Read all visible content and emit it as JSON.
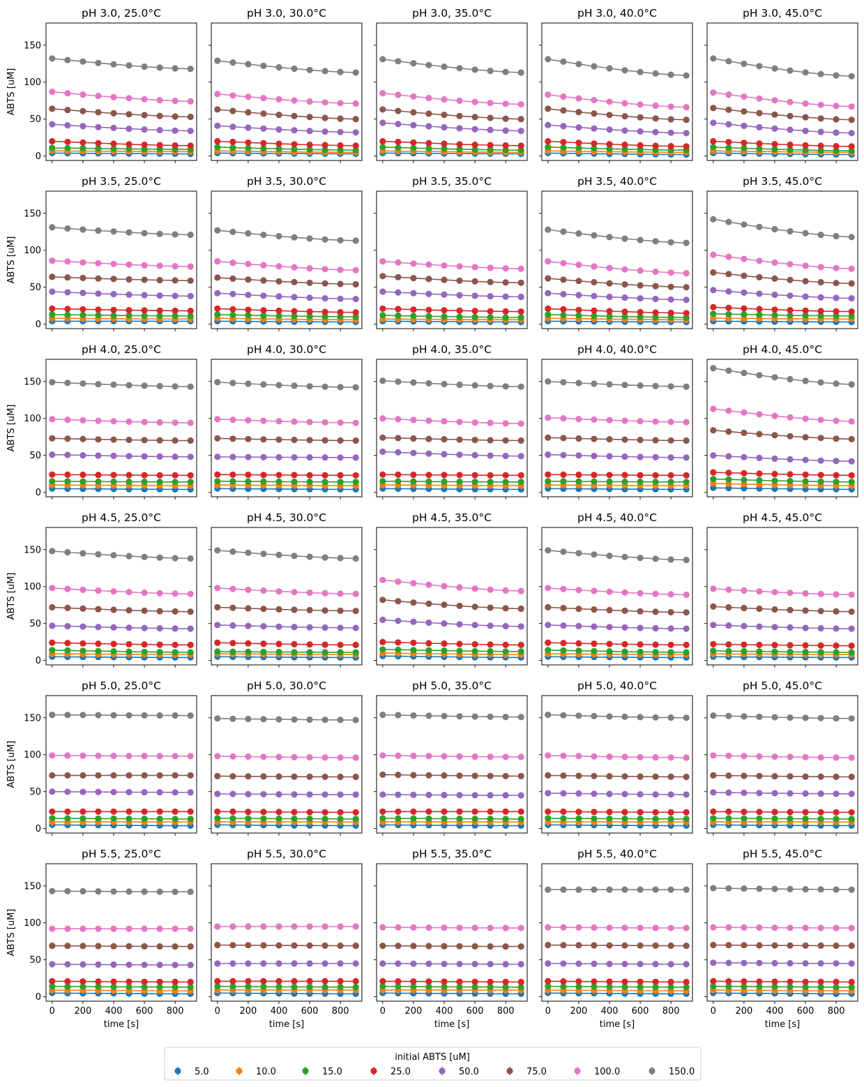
{
  "figure": {
    "legend_title": "initial ABTS [uM]",
    "xlabel": "time [s]",
    "ylabel": "ABTS [uM]"
  },
  "series_styles": [
    {
      "name": "5.0",
      "color": "#1f77b4"
    },
    {
      "name": "10.0",
      "color": "#ff7f0e"
    },
    {
      "name": "15.0",
      "color": "#2ca02c"
    },
    {
      "name": "25.0",
      "color": "#d62728"
    },
    {
      "name": "50.0",
      "color": "#9467bd"
    },
    {
      "name": "75.0",
      "color": "#8c564b"
    },
    {
      "name": "100.0",
      "color": "#e377c2"
    },
    {
      "name": "150.0",
      "color": "#7f7f7f"
    }
  ],
  "chart_data": {
    "type": "scatter",
    "xlim": [
      -40,
      940
    ],
    "ylim": [
      -6,
      180
    ],
    "xticks": [
      0,
      200,
      400,
      600,
      800
    ],
    "yticks": [
      0,
      50,
      100,
      150
    ],
    "x": [
      0,
      100,
      200,
      300,
      400,
      500,
      600,
      700,
      800,
      900
    ],
    "legend_position": "bottom-center",
    "grid": false,
    "panels": [
      {
        "title": "pH 3.0, 25.0°C",
        "start": [
          4,
          7,
          11,
          20,
          43,
          64,
          87,
          132
        ],
        "end": [
          3,
          6,
          9,
          14,
          34,
          53,
          74,
          118
        ]
      },
      {
        "title": "pH 3.0, 30.0°C",
        "start": [
          4,
          7,
          12,
          20,
          41,
          63,
          84,
          129
        ],
        "end": [
          3,
          5,
          8,
          14,
          32,
          50,
          71,
          113
        ]
      },
      {
        "title": "pH 3.0, 35.0°C",
        "start": [
          4,
          7,
          12,
          20,
          45,
          63,
          85,
          131
        ],
        "end": [
          3,
          5,
          8,
          14,
          34,
          50,
          70,
          113
        ]
      },
      {
        "title": "pH 3.0, 40.0°C",
        "start": [
          4,
          7,
          12,
          20,
          42,
          64,
          83,
          131
        ],
        "end": [
          2,
          5,
          8,
          13,
          31,
          49,
          66,
          109
        ]
      },
      {
        "title": "pH 3.0, 45.0°C",
        "start": [
          4,
          7,
          12,
          20,
          45,
          65,
          86,
          132
        ],
        "end": [
          2,
          5,
          7,
          13,
          31,
          49,
          67,
          108
        ]
      },
      {
        "title": "pH 3.5, 25.0°C",
        "start": [
          4,
          8,
          13,
          21,
          44,
          64,
          86,
          131
        ],
        "end": [
          4,
          7,
          11,
          18,
          38,
          59,
          78,
          121
        ]
      },
      {
        "title": "pH 3.5, 30.0°C",
        "start": [
          4,
          8,
          13,
          21,
          42,
          63,
          85,
          127
        ],
        "end": [
          3,
          6,
          10,
          16,
          34,
          54,
          73,
          113
        ]
      },
      {
        "title": "pH 3.5, 35.0°C",
        "start": [
          4,
          7,
          12,
          21,
          44,
          65,
          85,
          0
        ],
        "end": [
          3,
          6,
          9,
          17,
          37,
          56,
          75,
          0
        ]
      },
      {
        "title": "pH 3.5, 40.0°C",
        "start": [
          4,
          8,
          13,
          21,
          42,
          62,
          85,
          128
        ],
        "end": [
          3,
          6,
          9,
          15,
          33,
          50,
          69,
          110
        ]
      },
      {
        "title": "pH 3.5, 45.0°C",
        "start": [
          4,
          8,
          14,
          23,
          46,
          70,
          94,
          142
        ],
        "end": [
          3,
          7,
          11,
          17,
          35,
          55,
          75,
          118
        ]
      },
      {
        "title": "pH 4.0, 25.0°C",
        "start": [
          5,
          10,
          15,
          24,
          51,
          73,
          99,
          149
        ],
        "end": [
          4,
          9,
          14,
          23,
          48,
          70,
          94,
          143
        ]
      },
      {
        "title": "pH 4.0, 30.0°C",
        "start": [
          5,
          10,
          15,
          24,
          48,
          73,
          99,
          149
        ],
        "end": [
          4,
          9,
          14,
          23,
          47,
          70,
          94,
          142
        ]
      },
      {
        "title": "pH 4.0, 35.0°C",
        "start": [
          5,
          10,
          15,
          24,
          55,
          74,
          100,
          151
        ],
        "end": [
          4,
          9,
          14,
          23,
          49,
          70,
          93,
          143
        ]
      },
      {
        "title": "pH 4.0, 40.0°C",
        "start": [
          5,
          10,
          15,
          24,
          51,
          74,
          101,
          150
        ],
        "end": [
          4,
          9,
          14,
          23,
          47,
          70,
          95,
          143
        ]
      },
      {
        "title": "pH 4.0, 45.0°C",
        "start": [
          6,
          12,
          18,
          27,
          50,
          84,
          113,
          168
        ],
        "end": [
          4,
          9,
          14,
          23,
          42,
          72,
          96,
          146
        ]
      },
      {
        "title": "pH 4.5, 25.0°C",
        "start": [
          5,
          9,
          14,
          24,
          47,
          72,
          98,
          148
        ],
        "end": [
          4,
          8,
          11,
          21,
          43,
          66,
          90,
          138
        ]
      },
      {
        "title": "pH 4.5, 30.0°C",
        "start": [
          5,
          9,
          12,
          24,
          48,
          72,
          98,
          149
        ],
        "end": [
          4,
          8,
          11,
          21,
          44,
          67,
          90,
          138
        ]
      },
      {
        "title": "pH 4.5, 35.0°C",
        "start": [
          6,
          10,
          15,
          25,
          55,
          82,
          109,
          0
        ],
        "end": [
          4,
          8,
          12,
          21,
          46,
          70,
          94,
          0
        ]
      },
      {
        "title": "pH 4.5, 40.0°C",
        "start": [
          5,
          9,
          14,
          24,
          48,
          72,
          98,
          149
        ],
        "end": [
          4,
          8,
          11,
          21,
          43,
          65,
          89,
          136
        ]
      },
      {
        "title": "pH 4.5, 45.0°C",
        "start": [
          5,
          9,
          13,
          22,
          48,
          73,
          97,
          0
        ],
        "end": [
          4,
          8,
          11,
          20,
          43,
          66,
          89,
          0
        ]
      },
      {
        "title": "pH 5.0, 25.0°C",
        "start": [
          5,
          9,
          14,
          23,
          50,
          72,
          99,
          154
        ],
        "end": [
          4,
          9,
          13,
          23,
          49,
          72,
          98,
          153
        ]
      },
      {
        "title": "pH 5.0, 30.0°C",
        "start": [
          5,
          9,
          14,
          23,
          47,
          71,
          98,
          149
        ],
        "end": [
          4,
          9,
          13,
          22,
          46,
          70,
          96,
          147
        ]
      },
      {
        "title": "pH 5.0, 35.0°C",
        "start": [
          5,
          9,
          14,
          23,
          46,
          73,
          99,
          154
        ],
        "end": [
          4,
          9,
          13,
          23,
          45,
          71,
          97,
          151
        ]
      },
      {
        "title": "pH 5.0, 40.0°C",
        "start": [
          5,
          9,
          14,
          23,
          48,
          72,
          99,
          154
        ],
        "end": [
          4,
          9,
          13,
          22,
          46,
          70,
          96,
          150
        ]
      },
      {
        "title": "pH 5.0, 45.0°C",
        "start": [
          5,
          9,
          14,
          23,
          49,
          72,
          99,
          153
        ],
        "end": [
          4,
          9,
          13,
          22,
          47,
          70,
          96,
          149
        ]
      },
      {
        "title": "pH 5.5, 25.0°C",
        "start": [
          5,
          9,
          14,
          21,
          44,
          69,
          92,
          143
        ],
        "end": [
          4,
          8,
          13,
          20,
          43,
          68,
          92,
          142
        ]
      },
      {
        "title": "pH 5.5, 30.0°C",
        "start": [
          5,
          9,
          14,
          21,
          45,
          70,
          95,
          0
        ],
        "end": [
          4,
          9,
          13,
          21,
          45,
          69,
          95,
          0
        ]
      },
      {
        "title": "pH 5.5, 35.0°C",
        "start": [
          5,
          9,
          14,
          21,
          45,
          69,
          94,
          0
        ],
        "end": [
          4,
          9,
          13,
          20,
          44,
          68,
          93,
          0
        ]
      },
      {
        "title": "pH 5.5, 40.0°C",
        "start": [
          5,
          9,
          14,
          21,
          45,
          70,
          94,
          145
        ],
        "end": [
          4,
          8,
          13,
          20,
          44,
          69,
          93,
          145
        ]
      },
      {
        "title": "pH 5.5, 45.0°C",
        "start": [
          5,
          9,
          14,
          21,
          46,
          70,
          94,
          147
        ],
        "end": [
          4,
          8,
          13,
          20,
          45,
          69,
          93,
          145
        ]
      }
    ]
  }
}
